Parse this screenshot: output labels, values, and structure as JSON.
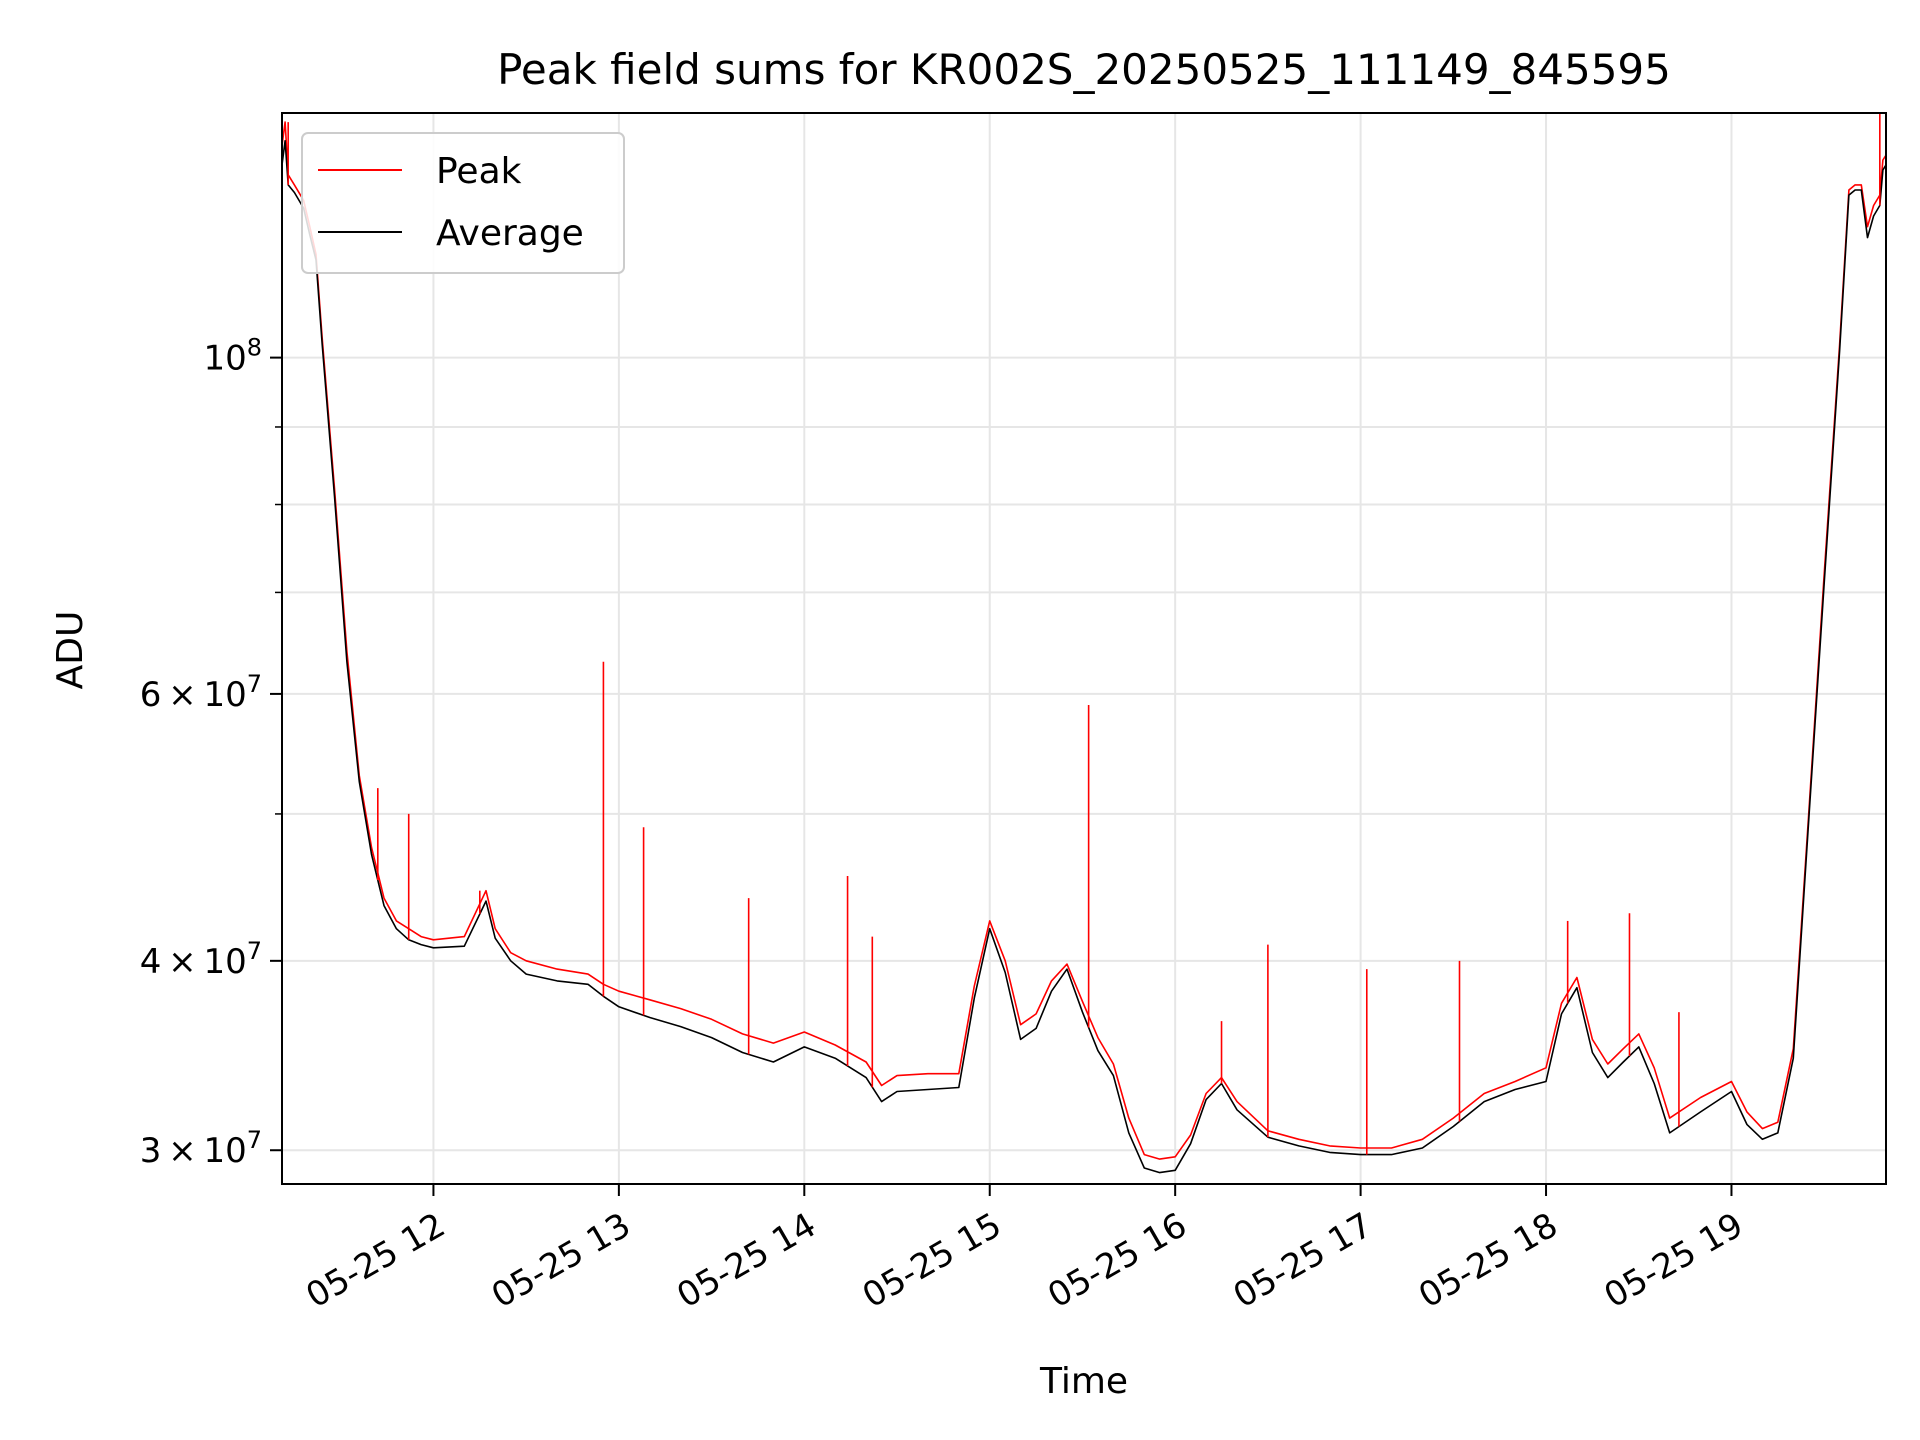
{
  "chart_data": {
    "type": "line",
    "title": "Peak field sums for KR002S_20250525_111149_845595",
    "xlabel": "Time",
    "ylabel": "ADU",
    "yscale": "log",
    "xlim": [
      "2025-05-25 11:11",
      "2025-05-25 19:50"
    ],
    "ylim": [
      28500000,
      145000000
    ],
    "grid": true,
    "legend_position": "top-left",
    "x_ticks": [
      "2025-05-25 12:00",
      "2025-05-25 13:00",
      "2025-05-25 14:00",
      "2025-05-25 15:00",
      "2025-05-25 16:00",
      "2025-05-25 17:00",
      "2025-05-25 18:00",
      "2025-05-25 19:00"
    ],
    "x_tick_labels": [
      "05-25 12",
      "05-25 13",
      "05-25 14",
      "05-25 15",
      "05-25 16",
      "05-25 17",
      "05-25 18",
      "05-25 19"
    ],
    "y_ticks": [
      100000000,
      60000000,
      40000000,
      30000000
    ],
    "y_tick_labels": [
      {
        "base": "10",
        "exp": "8"
      },
      {
        "coef": "6",
        "base": "10",
        "exp": "7"
      },
      {
        "coef": "4",
        "base": "10",
        "exp": "7"
      },
      {
        "coef": "3",
        "base": "10",
        "exp": "7"
      }
    ],
    "y_minor_ticks": [
      90000000,
      80000000,
      70000000,
      50000000
    ],
    "series": [
      {
        "name": "Peak",
        "color": "#ff0000",
        "x": [
          "2025-05-25 11:11",
          "2025-05-25 11:12",
          "2025-05-25 11:13",
          "2025-05-25 11:15",
          "2025-05-25 11:18",
          "2025-05-25 11:20",
          "2025-05-25 11:22",
          "2025-05-25 11:24",
          "2025-05-25 11:28",
          "2025-05-25 11:32",
          "2025-05-25 11:36",
          "2025-05-25 11:40",
          "2025-05-25 11:44",
          "2025-05-25 11:48",
          "2025-05-25 11:52",
          "2025-05-25 11:56",
          "2025-05-25 12:00",
          "2025-05-25 12:10",
          "2025-05-25 12:17",
          "2025-05-25 12:20",
          "2025-05-25 12:25",
          "2025-05-25 12:30",
          "2025-05-25 12:40",
          "2025-05-25 12:50",
          "2025-05-25 12:55",
          "2025-05-25 13:00",
          "2025-05-25 13:10",
          "2025-05-25 13:20",
          "2025-05-25 13:30",
          "2025-05-25 13:40",
          "2025-05-25 13:50",
          "2025-05-25 14:00",
          "2025-05-25 14:10",
          "2025-05-25 14:20",
          "2025-05-25 14:25",
          "2025-05-25 14:30",
          "2025-05-25 14:40",
          "2025-05-25 14:50",
          "2025-05-25 14:55",
          "2025-05-25 15:00",
          "2025-05-25 15:05",
          "2025-05-25 15:10",
          "2025-05-25 15:15",
          "2025-05-25 15:20",
          "2025-05-25 15:25",
          "2025-05-25 15:30",
          "2025-05-25 15:35",
          "2025-05-25 15:40",
          "2025-05-25 15:45",
          "2025-05-25 15:50",
          "2025-05-25 15:55",
          "2025-05-25 16:00",
          "2025-05-25 16:05",
          "2025-05-25 16:10",
          "2025-05-25 16:15",
          "2025-05-25 16:20",
          "2025-05-25 16:30",
          "2025-05-25 16:40",
          "2025-05-25 16:50",
          "2025-05-25 17:00",
          "2025-05-25 17:10",
          "2025-05-25 17:20",
          "2025-05-25 17:30",
          "2025-05-25 17:40",
          "2025-05-25 17:50",
          "2025-05-25 18:00",
          "2025-05-25 18:05",
          "2025-05-25 18:10",
          "2025-05-25 18:15",
          "2025-05-25 18:20",
          "2025-05-25 18:25",
          "2025-05-25 18:30",
          "2025-05-25 18:35",
          "2025-05-25 18:40",
          "2025-05-25 18:50",
          "2025-05-25 19:00",
          "2025-05-25 19:05",
          "2025-05-25 19:10",
          "2025-05-25 19:15",
          "2025-05-25 19:20",
          "2025-05-25 19:25",
          "2025-05-25 19:30",
          "2025-05-25 19:35",
          "2025-05-25 19:38",
          "2025-05-25 19:40",
          "2025-05-25 19:42",
          "2025-05-25 19:44",
          "2025-05-25 19:46",
          "2025-05-25 19:48",
          "2025-05-25 19:49",
          "2025-05-25 19:50"
        ],
        "y": [
          138000000,
          143000000,
          132000000,
          130000000,
          127000000,
          122000000,
          117000000,
          103000000,
          82000000,
          64000000,
          53000000,
          47500000,
          44000000,
          42500000,
          42000000,
          41500000,
          41300000,
          41500000,
          44500000,
          42000000,
          40500000,
          40000000,
          39500000,
          39200000,
          38600000,
          38200000,
          37700000,
          37200000,
          36600000,
          35800000,
          35300000,
          35900000,
          35200000,
          34300000,
          33100000,
          33600000,
          33700000,
          33700000,
          38500000,
          42500000,
          40000000,
          36300000,
          36900000,
          38800000,
          39800000,
          37600000,
          35600000,
          34200000,
          31500000,
          29800000,
          29600000,
          29700000,
          30700000,
          32700000,
          33500000,
          32300000,
          30900000,
          30500000,
          30200000,
          30100000,
          30100000,
          30500000,
          31500000,
          32700000,
          33300000,
          34000000,
          37500000,
          39000000,
          35500000,
          34200000,
          35000000,
          35800000,
          34000000,
          31500000,
          32500000,
          33300000,
          31800000,
          31000000,
          31300000,
          35000000,
          50000000,
          72000000,
          102000000,
          129000000,
          130000000,
          130000000,
          122000000,
          126000000,
          128000000,
          135000000,
          136000000
        ]
      },
      {
        "name": "Average",
        "color": "#000000",
        "x": [
          "2025-05-25 11:11",
          "2025-05-25 11:12",
          "2025-05-25 11:13",
          "2025-05-25 11:15",
          "2025-05-25 11:18",
          "2025-05-25 11:20",
          "2025-05-25 11:22",
          "2025-05-25 11:24",
          "2025-05-25 11:28",
          "2025-05-25 11:32",
          "2025-05-25 11:36",
          "2025-05-25 11:40",
          "2025-05-25 11:44",
          "2025-05-25 11:48",
          "2025-05-25 11:52",
          "2025-05-25 11:56",
          "2025-05-25 12:00",
          "2025-05-25 12:10",
          "2025-05-25 12:17",
          "2025-05-25 12:20",
          "2025-05-25 12:25",
          "2025-05-25 12:30",
          "2025-05-25 12:40",
          "2025-05-25 12:50",
          "2025-05-25 12:55",
          "2025-05-25 13:00",
          "2025-05-25 13:10",
          "2025-05-25 13:20",
          "2025-05-25 13:30",
          "2025-05-25 13:40",
          "2025-05-25 13:50",
          "2025-05-25 14:00",
          "2025-05-25 14:10",
          "2025-05-25 14:20",
          "2025-05-25 14:25",
          "2025-05-25 14:30",
          "2025-05-25 14:40",
          "2025-05-25 14:50",
          "2025-05-25 14:55",
          "2025-05-25 15:00",
          "2025-05-25 15:05",
          "2025-05-25 15:10",
          "2025-05-25 15:15",
          "2025-05-25 15:20",
          "2025-05-25 15:25",
          "2025-05-25 15:30",
          "2025-05-25 15:35",
          "2025-05-25 15:40",
          "2025-05-25 15:45",
          "2025-05-25 15:50",
          "2025-05-25 15:55",
          "2025-05-25 16:00",
          "2025-05-25 16:05",
          "2025-05-25 16:10",
          "2025-05-25 16:15",
          "2025-05-25 16:20",
          "2025-05-25 16:30",
          "2025-05-25 16:40",
          "2025-05-25 16:50",
          "2025-05-25 17:00",
          "2025-05-25 17:10",
          "2025-05-25 17:20",
          "2025-05-25 17:30",
          "2025-05-25 17:40",
          "2025-05-25 17:50",
          "2025-05-25 18:00",
          "2025-05-25 18:05",
          "2025-05-25 18:10",
          "2025-05-25 18:15",
          "2025-05-25 18:20",
          "2025-05-25 18:25",
          "2025-05-25 18:30",
          "2025-05-25 18:35",
          "2025-05-25 18:40",
          "2025-05-25 18:50",
          "2025-05-25 19:00",
          "2025-05-25 19:05",
          "2025-05-25 19:10",
          "2025-05-25 19:15",
          "2025-05-25 19:20",
          "2025-05-25 19:25",
          "2025-05-25 19:30",
          "2025-05-25 19:35",
          "2025-05-25 19:38",
          "2025-05-25 19:40",
          "2025-05-25 19:42",
          "2025-05-25 19:44",
          "2025-05-25 19:46",
          "2025-05-25 19:48",
          "2025-05-25 19:49",
          "2025-05-25 19:50"
        ],
        "y": [
          134000000,
          139000000,
          130000000,
          128500000,
          125500000,
          120500000,
          116000000,
          102000000,
          81000000,
          63000000,
          52500000,
          47000000,
          43500000,
          42000000,
          41300000,
          41000000,
          40800000,
          40900000,
          43800000,
          41400000,
          40000000,
          39200000,
          38800000,
          38600000,
          37900000,
          37300000,
          36700000,
          36200000,
          35600000,
          34800000,
          34300000,
          35100000,
          34500000,
          33500000,
          32300000,
          32800000,
          32900000,
          33000000,
          37800000,
          42000000,
          39300000,
          35500000,
          36100000,
          38200000,
          39500000,
          37000000,
          34900000,
          33600000,
          30800000,
          29200000,
          29000000,
          29100000,
          30300000,
          32400000,
          33200000,
          31900000,
          30600000,
          30200000,
          29900000,
          29800000,
          29800000,
          30100000,
          31100000,
          32300000,
          32900000,
          33300000,
          36900000,
          38400000,
          34800000,
          33500000,
          34300000,
          35100000,
          33200000,
          30800000,
          31800000,
          32800000,
          31200000,
          30500000,
          30800000,
          34500000,
          49500000,
          71000000,
          101000000,
          128000000,
          129000000,
          129000000,
          120000000,
          124000000,
          126000000,
          133000000,
          134000000
        ]
      }
    ],
    "spikes": [
      {
        "series": "Peak",
        "x": "2025-05-25 11:13",
        "y": 143000000
      },
      {
        "series": "Peak",
        "x": "2025-05-25 11:42",
        "y": 52000000
      },
      {
        "series": "Peak",
        "x": "2025-05-25 11:52",
        "y": 50000000
      },
      {
        "series": "Peak",
        "x": "2025-05-25 12:15",
        "y": 44500000
      },
      {
        "series": "Peak",
        "x": "2025-05-25 12:55",
        "y": 63000000
      },
      {
        "series": "Peak",
        "x": "2025-05-25 13:08",
        "y": 49000000
      },
      {
        "series": "Peak",
        "x": "2025-05-25 13:42",
        "y": 44000000
      },
      {
        "series": "Peak",
        "x": "2025-05-25 14:14",
        "y": 45500000
      },
      {
        "series": "Peak",
        "x": "2025-05-25 14:22",
        "y": 41500000
      },
      {
        "series": "Peak",
        "x": "2025-05-25 15:32",
        "y": 59000000
      },
      {
        "series": "Peak",
        "x": "2025-05-25 16:15",
        "y": 36500000
      },
      {
        "series": "Peak",
        "x": "2025-05-25 16:30",
        "y": 41000000
      },
      {
        "series": "Peak",
        "x": "2025-05-25 17:02",
        "y": 39500000
      },
      {
        "series": "Peak",
        "x": "2025-05-25 17:32",
        "y": 40000000
      },
      {
        "series": "Peak",
        "x": "2025-05-25 18:07",
        "y": 42500000
      },
      {
        "series": "Peak",
        "x": "2025-05-25 18:27",
        "y": 43000000
      },
      {
        "series": "Peak",
        "x": "2025-05-25 18:43",
        "y": 37000000
      },
      {
        "series": "Peak",
        "x": "2025-05-25 19:48",
        "y": 145000000
      }
    ]
  }
}
